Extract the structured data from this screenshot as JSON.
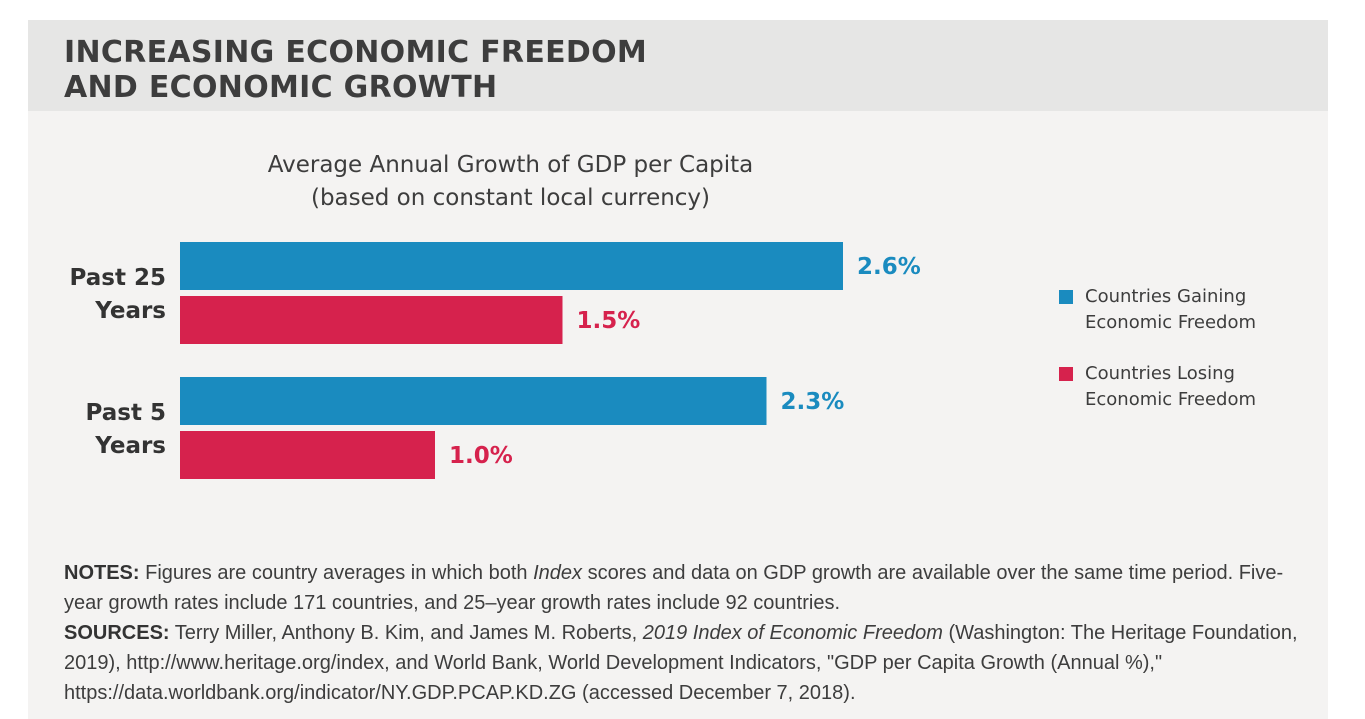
{
  "header": {
    "title_line1": "INCREASING ECONOMIC FREEDOM",
    "title_line2": "AND ECONOMIC GROWTH"
  },
  "chart_data": {
    "type": "bar",
    "orientation": "horizontal",
    "title_line1": "Average Annual Growth of GDP per Capita",
    "title_line2": "(based on constant local currency)",
    "categories": [
      {
        "line1": "Past 25",
        "line2": "Years"
      },
      {
        "line1": "Past 5",
        "line2": "Years"
      }
    ],
    "series": [
      {
        "name_line1": "Countries Gaining",
        "name_line2": "Economic Freedom",
        "color": "#1a8bbf",
        "values": [
          2.6,
          2.3
        ],
        "labels": [
          "2.6%",
          "2.3%"
        ]
      },
      {
        "name_line1": "Countries Losing",
        "name_line2": "Economic Freedom",
        "color": "#d6224d",
        "values": [
          1.5,
          1.0
        ],
        "labels": [
          "1.5%",
          "1.0%"
        ]
      }
    ],
    "xlim": [
      0,
      2.6
    ],
    "grid": false,
    "legend_position": "right"
  },
  "notes": {
    "notes_label": "NOTES:",
    "notes_text_a": " Figures are country averages in which both ",
    "notes_italic": "Index",
    "notes_text_b": " scores and data on GDP growth are available over the same time period. Five-year growth rates include 171 countries, and 25–year growth rates include 92 countries.",
    "sources_label": "SOURCES:",
    "sources_text_a": " Terry Miller, Anthony B. Kim, and James M. Roberts, ",
    "sources_italic": "2019 Index of Economic Freedom",
    "sources_text_b": " (Washington: The Heritage Foundation, 2019), http://www.heritage.org/index, and World Bank, World Development Indicators, \"GDP per Capita Growth (Annual %),\" https://data.worldbank.org/indicator/NY.GDP.PCAP.KD.ZG (accessed December 7, 2018)."
  }
}
